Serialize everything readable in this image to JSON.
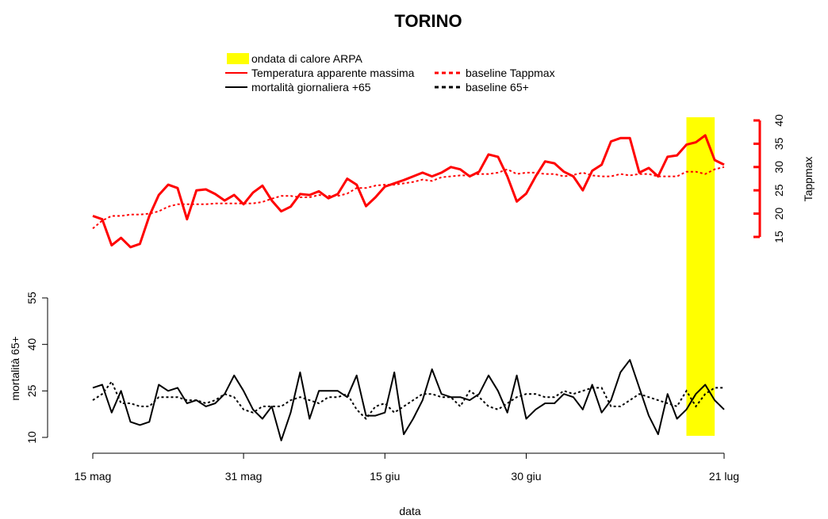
{
  "colors": {
    "temp": "#ff0000",
    "mort": "#000000",
    "heatwave": "#ffff00"
  },
  "chart_data": {
    "type": "line",
    "title": "TORINO",
    "xlabel": "data",
    "x_ticks": [
      "15 mag",
      "31 mag",
      "15 giu",
      "30 giu",
      "21 lug"
    ],
    "x_tick_days": [
      0,
      16,
      31,
      46,
      67
    ],
    "x_range_days": [
      0,
      67
    ],
    "dates_note": "day 0 = 15 mag",
    "heatwave": {
      "label": "ondata di calore ARPA",
      "start_day": 63,
      "end_day": 66
    },
    "temp_axis": {
      "label": "Tappmax",
      "ticks": [
        15,
        20,
        25,
        30,
        35,
        40
      ],
      "range": [
        15,
        40
      ],
      "position": "right"
    },
    "mort_axis": {
      "label": "mortalità 65+",
      "ticks": [
        10,
        25,
        40,
        55
      ],
      "range": [
        10,
        55
      ],
      "position": "left"
    },
    "series": [
      {
        "name": "Temperatura apparente massima",
        "axis": "temp",
        "style": "solid",
        "values": [
          19.5,
          18.8,
          13.2,
          14.8,
          12.8,
          13.5,
          19.5,
          24.0,
          26.2,
          25.5,
          18.8,
          25.0,
          25.2,
          24.2,
          22.8,
          24.0,
          22.0,
          24.5,
          26.0,
          22.8,
          20.5,
          21.5,
          24.2,
          24.0,
          24.8,
          23.3,
          24.2,
          27.5,
          26.2,
          21.6,
          23.5,
          25.8,
          26.5,
          27.2,
          28.0,
          28.8,
          28.0,
          28.8,
          30.0,
          29.5,
          28.0,
          29.0,
          32.7,
          32.2,
          28.0,
          22.6,
          24.3,
          28.0,
          31.2,
          30.8,
          29.0,
          28.0,
          25.0,
          29.2,
          30.5,
          35.5,
          36.2,
          36.2,
          28.8,
          29.8,
          28.0,
          32.2,
          32.5,
          34.8,
          35.3,
          36.8,
          31.5,
          30.5
        ]
      },
      {
        "name": "baseline Tappmax",
        "axis": "temp",
        "style": "dotted",
        "values": [
          16.8,
          18.5,
          19.5,
          19.5,
          19.8,
          19.8,
          20.0,
          20.5,
          21.5,
          22.0,
          22.0,
          22.0,
          22.0,
          22.2,
          22.2,
          22.2,
          22.2,
          22.2,
          22.5,
          23.2,
          23.8,
          23.8,
          23.5,
          23.5,
          24.0,
          23.8,
          23.8,
          24.3,
          25.5,
          25.5,
          26.0,
          26.2,
          26.2,
          26.5,
          26.8,
          27.3,
          27.0,
          27.8,
          28.0,
          28.2,
          28.2,
          28.5,
          28.5,
          28.8,
          29.5,
          28.5,
          28.8,
          28.8,
          28.5,
          28.5,
          28.0,
          28.3,
          28.8,
          28.2,
          28.0,
          28.0,
          28.5,
          28.2,
          28.5,
          28.5,
          28.0,
          28.0,
          28.0,
          29.0,
          29.0,
          28.5,
          29.5,
          30.0
        ]
      },
      {
        "name": "mortalità giornaliera +65",
        "axis": "mort",
        "style": "solid",
        "values": [
          26,
          27,
          18,
          25,
          15,
          14,
          15,
          27,
          25,
          26,
          21,
          22,
          20,
          21,
          24,
          30,
          25,
          19,
          16,
          20,
          9,
          18,
          31,
          16,
          25,
          25,
          25,
          23,
          30,
          17,
          17,
          18,
          31,
          11,
          16,
          22,
          32,
          24,
          23,
          23,
          22,
          24,
          30,
          25,
          18,
          30,
          16,
          19,
          21,
          21,
          24,
          23,
          19,
          27,
          18,
          22,
          31,
          35,
          26,
          17,
          11,
          24,
          16,
          19,
          24,
          27,
          22,
          19
        ]
      },
      {
        "name": "baseline 65+",
        "axis": "mort",
        "style": "dotted",
        "values": [
          22,
          24,
          28,
          21,
          21,
          20,
          20,
          23,
          23,
          23,
          22,
          22,
          21,
          22,
          24,
          23,
          19,
          18,
          20,
          20,
          20,
          22,
          23,
          22,
          21,
          23,
          23,
          24,
          19,
          16,
          20,
          21,
          18,
          20,
          22,
          24,
          24,
          23,
          23,
          20,
          25,
          23,
          20,
          19,
          21,
          23,
          24,
          24,
          23,
          23,
          25,
          24,
          25,
          26,
          26,
          20,
          20,
          22,
          24,
          23,
          22,
          21,
          20,
          25,
          20,
          24,
          26,
          26
        ]
      }
    ]
  }
}
